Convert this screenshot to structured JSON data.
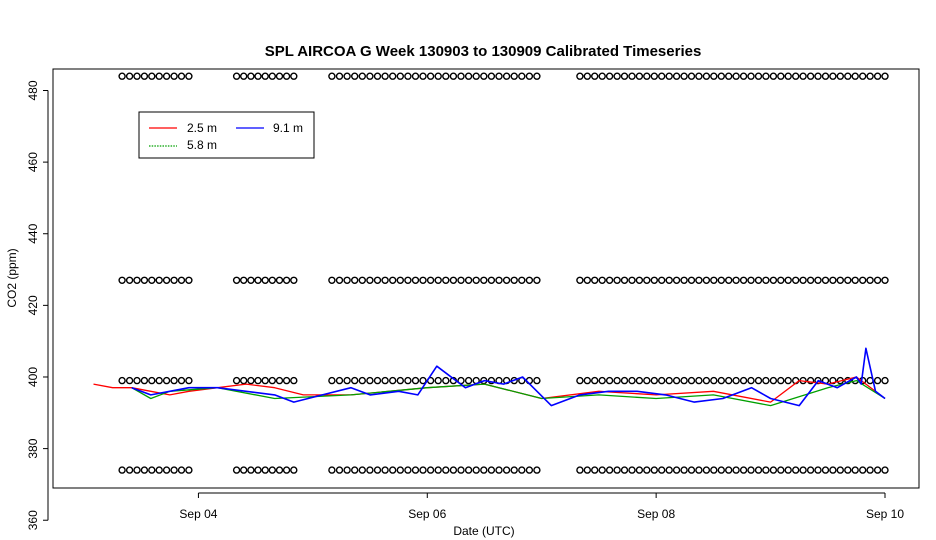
{
  "chart_data": {
    "type": "line",
    "title": "SPL AIRCOA G  Week 130903 to 130909  Calibrated Timeseries",
    "xlabel": "Date (UTC)",
    "ylabel": "CO2 (ppm)",
    "xlim": [
      "2013-09-03",
      "2013-09-10"
    ],
    "ylim": [
      369,
      486
    ],
    "x_ticks": [
      {
        "date": "2013-09-04",
        "label": "Sep 04"
      },
      {
        "date": "2013-09-06",
        "label": "Sep 06"
      },
      {
        "date": "2013-09-08",
        "label": "Sep 08"
      },
      {
        "date": "2013-09-10",
        "label": "Sep 10"
      }
    ],
    "y_ticks": [
      360,
      380,
      400,
      420,
      440,
      460,
      480
    ],
    "legend": {
      "position": "top-left",
      "entries": [
        {
          "name": "2.5 m",
          "color": "#ff0000"
        },
        {
          "name": "5.8 m",
          "color": "#00a000"
        },
        {
          "name": "9.1 m",
          "color": "#0000ff"
        }
      ]
    },
    "series": [
      {
        "name": "2.5 m",
        "color": "#ff0000",
        "x": [
          "2013-09-03 02:00",
          "2013-09-03 06:00",
          "2013-09-03 10:00",
          "2013-09-03 14:00",
          "2013-09-03 18:00",
          "2013-09-03 22:00",
          "2013-09-04 04:00",
          "2013-09-04 10:00",
          "2013-09-04 16:00",
          "2013-09-04 22:00",
          "2013-09-05 08:00",
          "2013-09-05 16:00",
          "2013-09-06 00:00",
          "2013-09-06 12:00",
          "2013-09-07 00:00",
          "2013-09-07 12:00",
          "2013-09-08 00:00",
          "2013-09-08 12:00",
          "2013-09-09 00:00",
          "2013-09-09 06:00",
          "2013-09-09 12:00",
          "2013-09-09 18:00",
          "2013-09-10 00:00"
        ],
        "values": [
          398,
          397,
          397,
          396,
          395,
          396,
          397,
          398,
          397,
          395,
          395,
          396,
          397,
          398,
          394,
          396,
          395,
          396,
          393,
          399,
          398,
          400,
          394
        ]
      },
      {
        "name": "5.8 m",
        "color": "#00a000",
        "x": [
          "2013-09-03 10:00",
          "2013-09-03 14:00",
          "2013-09-03 18:00",
          "2013-09-04 04:00",
          "2013-09-04 16:00",
          "2013-09-05 08:00",
          "2013-09-05 16:00",
          "2013-09-06 00:00",
          "2013-09-06 12:00",
          "2013-09-07 00:00",
          "2013-09-07 12:00",
          "2013-09-08 00:00",
          "2013-09-08 12:00",
          "2013-09-09 00:00",
          "2013-09-09 12:00",
          "2013-09-09 18:00",
          "2013-09-10 00:00"
        ],
        "values": [
          397,
          394,
          396,
          397,
          394,
          395,
          396,
          397,
          398,
          394,
          395,
          394,
          395,
          392,
          397,
          399,
          394
        ]
      },
      {
        "name": "9.1 m",
        "color": "#0000ff",
        "x": [
          "2013-09-03 10:00",
          "2013-09-03 14:00",
          "2013-09-03 18:00",
          "2013-09-03 22:00",
          "2013-09-04 04:00",
          "2013-09-04 10:00",
          "2013-09-04 16:00",
          "2013-09-04 20:00",
          "2013-09-05 02:00",
          "2013-09-05 08:00",
          "2013-09-05 12:00",
          "2013-09-05 18:00",
          "2013-09-05 22:00",
          "2013-09-06 02:00",
          "2013-09-06 08:00",
          "2013-09-06 12:00",
          "2013-09-06 16:00",
          "2013-09-06 20:00",
          "2013-09-07 02:00",
          "2013-09-07 08:00",
          "2013-09-07 14:00",
          "2013-09-07 20:00",
          "2013-09-08 02:00",
          "2013-09-08 08:00",
          "2013-09-08 14:00",
          "2013-09-08 20:00",
          "2013-09-09 00:00",
          "2013-09-09 06:00",
          "2013-09-09 10:00",
          "2013-09-09 14:00",
          "2013-09-09 18:00",
          "2013-09-09 19:00",
          "2013-09-09 20:00",
          "2013-09-09 22:00",
          "2013-09-10 00:00"
        ],
        "values": [
          397,
          395,
          396,
          397,
          397,
          396,
          395,
          393,
          395,
          397,
          395,
          396,
          395,
          403,
          397,
          399,
          398,
          400,
          392,
          395,
          396,
          396,
          395,
          393,
          394,
          397,
          394,
          392,
          399,
          397,
          400,
          398,
          408,
          396,
          394
        ]
      }
    ],
    "markers": {
      "symbol": "open circle",
      "levels": [
        {
          "y": 484,
          "segments": [
            [
              "2013-09-03 08:00",
              "2013-09-03 22:00"
            ],
            [
              "2013-09-04 08:00",
              "2013-09-04 20:00"
            ],
            [
              "2013-09-05 04:00",
              "2013-09-06 23:00"
            ],
            [
              "2013-09-07 08:00",
              "2013-09-10 00:00"
            ]
          ]
        },
        {
          "y": 427,
          "segments": [
            [
              "2013-09-03 08:00",
              "2013-09-03 22:00"
            ],
            [
              "2013-09-04 08:00",
              "2013-09-04 20:00"
            ],
            [
              "2013-09-05 04:00",
              "2013-09-06 23:00"
            ],
            [
              "2013-09-07 08:00",
              "2013-09-10 00:00"
            ]
          ]
        },
        {
          "y": 399,
          "segments": [
            [
              "2013-09-03 08:00",
              "2013-09-03 22:00"
            ],
            [
              "2013-09-04 08:00",
              "2013-09-04 20:00"
            ],
            [
              "2013-09-05 04:00",
              "2013-09-06 23:00"
            ],
            [
              "2013-09-07 08:00",
              "2013-09-10 00:00"
            ]
          ]
        },
        {
          "y": 374,
          "segments": [
            [
              "2013-09-03 08:00",
              "2013-09-03 22:00"
            ],
            [
              "2013-09-04 08:00",
              "2013-09-04 20:00"
            ],
            [
              "2013-09-05 04:00",
              "2013-09-06 23:00"
            ],
            [
              "2013-09-07 08:00",
              "2013-09-10 00:00"
            ]
          ]
        }
      ]
    },
    "grid": false
  }
}
